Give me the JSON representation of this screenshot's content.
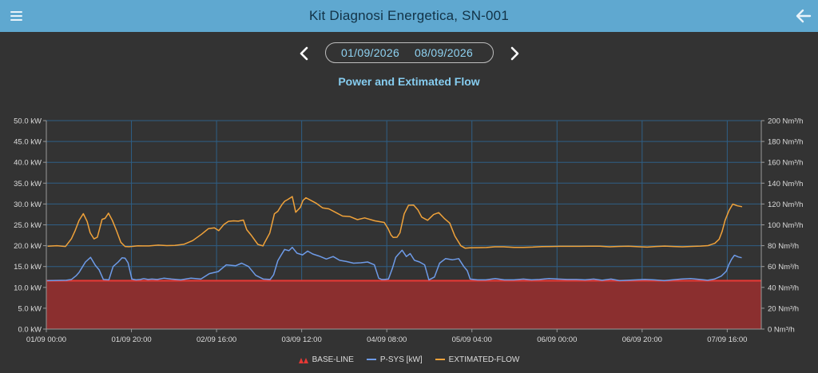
{
  "header": {
    "title": "Kit Diagnosi Energetica, SN-001",
    "menu_icon": "menu-icon",
    "back_icon": "arrow-left-icon"
  },
  "date_range": {
    "start": "01/09/2026",
    "end": "08/09/2026",
    "prev_icon": "chevron-left-icon",
    "next_icon": "chevron-right-icon"
  },
  "colors": {
    "header_bg": "#5fa8d0",
    "background": "#333333",
    "baseline": "#e53935",
    "baseline_fill": "#8b2f2f",
    "psys": "#6e9be8",
    "flow": "#f0a23a"
  },
  "chart_data": {
    "type": "line",
    "title": "Power and Extimated Flow",
    "x_unit": "hours since 01/09 00:00",
    "x_range": [
      0,
      168
    ],
    "x_ticks": [
      {
        "x": 0,
        "label": "01/09 00:00"
      },
      {
        "x": 20,
        "label": "01/09 20:00"
      },
      {
        "x": 40,
        "label": "02/09 16:00"
      },
      {
        "x": 60,
        "label": "03/09 12:00"
      },
      {
        "x": 80,
        "label": "04/09 08:00"
      },
      {
        "x": 100,
        "label": "05/09 04:00"
      },
      {
        "x": 120,
        "label": "06/09 00:00"
      },
      {
        "x": 140,
        "label": "06/09 20:00"
      },
      {
        "x": 160,
        "label": "07/09 16:00"
      }
    ],
    "y_left": {
      "range": [
        0,
        50
      ],
      "ticks": [
        {
          "v": 0,
          "label": "0.0 kW"
        },
        {
          "v": 5,
          "label": "5.0 kW"
        },
        {
          "v": 10,
          "label": "10.0 kW"
        },
        {
          "v": 15,
          "label": "15.0 kW"
        },
        {
          "v": 20,
          "label": "20.0 kW"
        },
        {
          "v": 25,
          "label": "25.0 kW"
        },
        {
          "v": 30,
          "label": "30.0 kW"
        },
        {
          "v": 35,
          "label": "35.0 kW"
        },
        {
          "v": 40,
          "label": "40.0 kW"
        },
        {
          "v": 45,
          "label": "45.0 kW"
        },
        {
          "v": 50,
          "label": "50.0 kW"
        }
      ]
    },
    "y_right": {
      "range": [
        0,
        200
      ],
      "ticks": [
        {
          "v": 0,
          "label": "0 Nm³/h"
        },
        {
          "v": 20,
          "label": "20 Nm³/h"
        },
        {
          "v": 40,
          "label": "40 Nm³/h"
        },
        {
          "v": 60,
          "label": "60 Nm³/h"
        },
        {
          "v": 80,
          "label": "80 Nm³/h"
        },
        {
          "v": 100,
          "label": "100 Nm³/h"
        },
        {
          "v": 120,
          "label": "120 Nm³/h"
        },
        {
          "v": 140,
          "label": "140 Nm³/h"
        },
        {
          "v": 160,
          "label": "160 Nm³/h"
        },
        {
          "v": 180,
          "label": "180 Nm³/h"
        },
        {
          "v": 200,
          "label": "200 Nm³/h"
        }
      ]
    },
    "grid": true,
    "legend_position": "bottom-center",
    "series": [
      {
        "name": "BASE-LINE",
        "type": "area",
        "axis": "left",
        "x": [
          0,
          168
        ],
        "y": [
          11.6,
          11.6
        ]
      },
      {
        "name": "P-SYS [kW]",
        "type": "line",
        "axis": "left",
        "x": [
          0.2,
          4.7,
          5.9,
          7.0,
          7.7,
          8.3,
          9.2,
          10.4,
          11.5,
          12.4,
          13.4,
          14.7,
          15.7,
          16.9,
          17.8,
          18.5,
          19.2,
          20.1,
          21.1,
          22.1,
          22.9,
          23.9,
          24.8,
          26.1,
          27.6,
          29.4,
          31.6,
          34.0,
          36.3,
          38.3,
          40.4,
          42.3,
          44.5,
          45.9,
          47.5,
          49.2,
          51.0,
          52.6,
          53.4,
          54.4,
          55.1,
          56.0,
          57.0,
          57.8,
          58.9,
          60.2,
          61.4,
          62.6,
          64.1,
          65.8,
          67.4,
          68.9,
          70.5,
          72.2,
          73.9,
          75.5,
          77.1,
          78.1,
          78.8,
          79.4,
          80.4,
          81.3,
          82.1,
          82.6,
          83.6,
          84.6,
          85.5,
          86.5,
          87.7,
          88.9,
          89.9,
          91.2,
          92.4,
          93.8,
          95.4,
          96.9,
          98.1,
          98.9,
          99.6,
          101.3,
          103.3,
          105.5,
          107.6,
          109.9,
          112.1,
          114.0,
          115.9,
          118.1,
          120.3,
          122.4,
          124.5,
          126.6,
          128.6,
          130.6,
          132.7,
          134.7,
          136.7,
          138.6,
          140.6,
          142.8,
          145.2,
          147.1,
          149.2,
          151.4,
          153.6,
          155.4,
          157.0,
          158.6,
          159.3,
          159.8,
          160.3,
          161.0,
          161.7,
          162.6,
          163.4
        ],
        "y": [
          11.6,
          11.7,
          11.9,
          12.8,
          13.6,
          14.6,
          16.1,
          17.2,
          15.3,
          14.2,
          11.9,
          11.8,
          15.0,
          16.1,
          17.1,
          17.0,
          15.9,
          12.0,
          11.8,
          11.9,
          12.1,
          11.9,
          12.0,
          11.9,
          12.2,
          12.0,
          11.8,
          12.2,
          12.0,
          13.3,
          13.8,
          15.4,
          15.2,
          15.8,
          15.0,
          12.9,
          12.0,
          11.9,
          13.0,
          16.4,
          17.6,
          19.1,
          18.8,
          19.6,
          18.2,
          17.8,
          18.7,
          18.0,
          17.5,
          16.8,
          17.4,
          16.5,
          16.2,
          15.8,
          15.9,
          16.1,
          15.4,
          12.2,
          11.9,
          11.9,
          12.0,
          14.5,
          17.2,
          17.8,
          18.9,
          17.4,
          18.1,
          16.5,
          16.1,
          15.4,
          11.8,
          12.5,
          15.8,
          16.9,
          16.6,
          16.9,
          15.0,
          14.0,
          12.0,
          11.8,
          11.8,
          12.1,
          11.8,
          11.8,
          12.0,
          11.8,
          11.9,
          12.1,
          12.0,
          11.9,
          11.9,
          11.8,
          12.0,
          11.7,
          12.0,
          11.6,
          11.7,
          11.8,
          11.9,
          11.8,
          11.6,
          11.8,
          12.0,
          12.1,
          11.9,
          11.7,
          12.0,
          12.7,
          13.4,
          13.9,
          15.3,
          16.7,
          17.7,
          17.3,
          17.1
        ]
      },
      {
        "name": "EXTIMATED-FLOW",
        "type": "line",
        "axis": "right",
        "x": [
          0.3,
          2.5,
          4.5,
          5.9,
          6.8,
          7.7,
          8.7,
          9.6,
          10.3,
          11.2,
          12.0,
          13.1,
          13.8,
          14.6,
          15.5,
          16.5,
          17.5,
          18.5,
          19.4,
          20.4,
          21.5,
          22.7,
          24.1,
          26.3,
          28.3,
          30.2,
          32.3,
          34.4,
          36.5,
          38.1,
          39.5,
          40.5,
          41.7,
          42.8,
          44.0,
          45.1,
          46.3,
          47.1,
          48.2,
          49.7,
          50.9,
          51.3,
          52.5,
          53.6,
          54.4,
          55.3,
          56.0,
          56.7,
          57.8,
          58.6,
          59.7,
          60.3,
          61.0,
          62.1,
          63.4,
          64.9,
          66.4,
          67.9,
          69.6,
          71.3,
          73.1,
          74.8,
          77.2,
          79.4,
          80.3,
          81.0,
          81.5,
          82.4,
          83.1,
          84.1,
          85.1,
          86.3,
          87.3,
          88.2,
          89.6,
          91.0,
          92.2,
          93.5,
          94.8,
          96.0,
          97.4,
          98.4,
          99.5,
          101.3,
          103.4,
          105.4,
          107.5,
          109.9,
          112.1,
          114.3,
          116.5,
          118.7,
          120.8,
          122.9,
          125.2,
          127.6,
          130.1,
          132.4,
          134.6,
          136.8,
          139.1,
          141.2,
          143.2,
          145.3,
          147.4,
          149.5,
          151.6,
          153.7,
          155.5,
          157.1,
          158.1,
          158.8,
          159.5,
          160.4,
          161.3,
          162.4,
          163.5
        ],
        "y": [
          79.5,
          80.0,
          79.2,
          86.7,
          94.7,
          104.3,
          110.7,
          103.2,
          92.3,
          86.5,
          88.2,
          105.3,
          106.2,
          111.2,
          104.4,
          94.3,
          83.3,
          79.2,
          79.0,
          79.4,
          79.9,
          79.8,
          79.8,
          80.5,
          80.1,
          80.3,
          81.3,
          84.9,
          91.0,
          96.4,
          97.2,
          94.4,
          100.3,
          103.4,
          103.8,
          103.5,
          104.6,
          95.3,
          89.7,
          81.2,
          79.8,
          83.1,
          92.1,
          110.6,
          113.0,
          119.0,
          122.6,
          124.2,
          127.1,
          112.0,
          116.8,
          123.3,
          126.0,
          123.6,
          120.8,
          116.3,
          115.3,
          112.1,
          108.4,
          108.0,
          105.0,
          106.7,
          103.8,
          102.3,
          96.4,
          90.2,
          87.9,
          88.1,
          92.3,
          110.6,
          118.8,
          118.9,
          114.4,
          107.4,
          104.4,
          109.9,
          111.7,
          106.2,
          101.7,
          89.3,
          79.9,
          77.6,
          78.0,
          78.1,
          78.2,
          78.9,
          78.9,
          78.3,
          78.4,
          78.6,
          79.1,
          79.2,
          79.4,
          79.4,
          79.4,
          79.5,
          79.5,
          78.9,
          79.3,
          79.5,
          79.0,
          78.6,
          79.2,
          79.6,
          79.2,
          78.9,
          79.3,
          79.6,
          80.1,
          82.3,
          86.3,
          93.7,
          104.4,
          113.6,
          119.9,
          118.2,
          117.4
        ]
      }
    ]
  },
  "legend": {
    "baseline": "BASE-LINE",
    "psys": "P-SYS [kW]",
    "flow": "EXTIMATED-FLOW"
  }
}
